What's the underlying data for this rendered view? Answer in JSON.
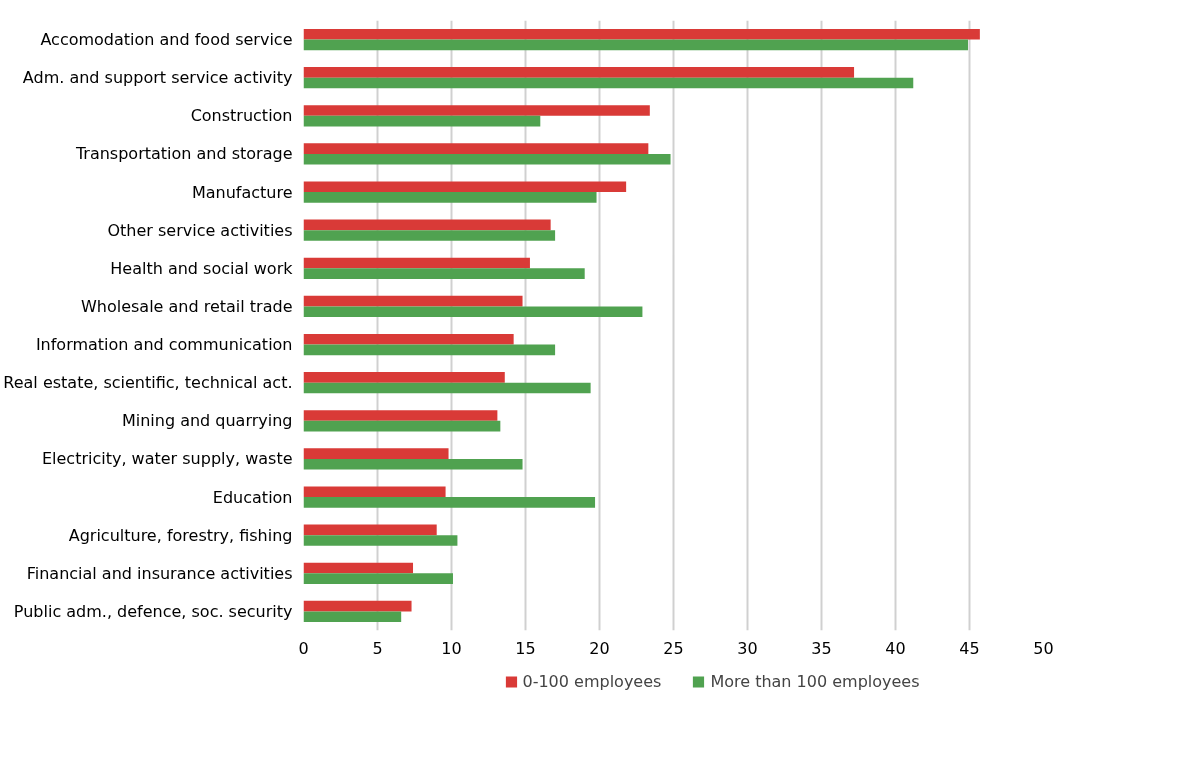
{
  "chart_data": {
    "type": "bar",
    "orientation": "horizontal",
    "categories": [
      "Accomodation and food service",
      "Adm. and support service activity",
      "Construction",
      "Transportation and storage",
      "Manufacture",
      "Other service activities",
      "Health and social work",
      "Wholesale and retail trade",
      "Information and communication",
      "Real estate, scientific, technical act.",
      "Mining and quarrying",
      "Electricity, water supply, waste",
      "Education",
      "Agriculture, forestry, fishing",
      "Financial and insurance activities",
      "Public adm., defence, soc. security"
    ],
    "series": [
      {
        "name": "0-100 employees",
        "color": "#d93a37",
        "values": [
          45.7,
          37.2,
          23.4,
          23.3,
          21.8,
          16.7,
          15.3,
          14.8,
          14.2,
          13.6,
          13.1,
          9.8,
          9.6,
          9.0,
          7.4,
          7.3
        ]
      },
      {
        "name": "More than 100 employees",
        "color": "#50a250",
        "values": [
          44.9,
          41.2,
          16.0,
          24.8,
          19.8,
          17.0,
          19.0,
          22.9,
          17.0,
          19.4,
          13.3,
          14.8,
          19.7,
          10.4,
          10.1,
          6.6
        ]
      }
    ],
    "xlim": [
      0,
      50
    ],
    "xticks": [
      0,
      5,
      10,
      15,
      20,
      25,
      30,
      35,
      40,
      45,
      50
    ],
    "grid": "x",
    "legend": "bottom"
  }
}
